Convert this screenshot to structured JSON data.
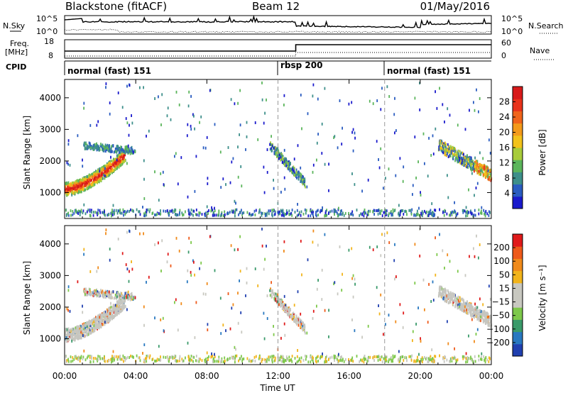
{
  "header": {
    "station": "Blackstone (fitACF)",
    "beam": "Beam 12",
    "date": "01/May/2016"
  },
  "side_labels": {
    "nsky": "N.Sky",
    "nsearch": "N.Search",
    "freq_line1": "Freq.",
    "freq_line2": "[MHz]",
    "nave": "Nave",
    "cpid": "CPID"
  },
  "noise_axis": {
    "left_ticks": [
      "10^5",
      "10^0"
    ],
    "right_ticks": [
      "10^5",
      "10^0"
    ]
  },
  "freq_axis": {
    "left_ticks": [
      "18",
      "8"
    ],
    "right_ticks": [
      "60",
      "0"
    ]
  },
  "cpid_segments": [
    {
      "label": "normal (fast) 151",
      "start_hour": 0
    },
    {
      "label": "rbsp 200",
      "start_hour": 12
    },
    {
      "label": "normal (fast) 151",
      "start_hour": 18
    }
  ],
  "colors": {
    "power_scale": [
      "#1a1acc",
      "#2a5cc0",
      "#3d8f8a",
      "#5bb55b",
      "#a8cc3a",
      "#f2c21a",
      "#f39a1a",
      "#f0641a",
      "#e8321a",
      "#d81a1a"
    ],
    "velocity_scale": [
      "#2040b0",
      "#2878c0",
      "#3a9a6a",
      "#7dc84a",
      "#c8c8c0",
      "#c8c8c0",
      "#f2b41a",
      "#f08a1a",
      "#ee5a1a",
      "#e01a1a"
    ],
    "gs_gray": "#c6c6c0"
  },
  "chart_data": [
    {
      "type": "heatmap",
      "title": "Power",
      "xlabel": "",
      "ylabel": "Slant Range [km]",
      "x_tick_labels": [
        "00:00",
        "04:00",
        "08:00",
        "12:00",
        "16:00",
        "20:00",
        "00:00"
      ],
      "xlim_hours": [
        0,
        24
      ],
      "y_tick_labels": [
        "1000",
        "2000",
        "3000",
        "4000"
      ],
      "ylim": [
        180,
        4580
      ],
      "colorbar": {
        "label": "Power [dB]",
        "ticks": [
          "4",
          "8",
          "12",
          "16",
          "20",
          "24",
          "28"
        ],
        "range": [
          0,
          30
        ]
      },
      "dashed_markers_hours": [
        12,
        18
      ],
      "grid": false
    },
    {
      "type": "heatmap",
      "title": "Velocity",
      "xlabel": "Time UT",
      "ylabel": "Slant Range [km]",
      "x_tick_labels": [
        "00:00",
        "04:00",
        "08:00",
        "12:00",
        "16:00",
        "20:00",
        "00:00"
      ],
      "xlim_hours": [
        0,
        24
      ],
      "y_tick_labels": [
        "1000",
        "2000",
        "3000",
        "4000"
      ],
      "ylim": [
        180,
        4580
      ],
      "colorbar": {
        "label": "Velocity [m s⁻¹]",
        "ticks": [
          "200",
          "100",
          "50",
          "15",
          "−15",
          "−50",
          "−100",
          "−200"
        ]
      },
      "dashed_markers_hours": [
        12,
        18
      ],
      "grid": false
    }
  ]
}
